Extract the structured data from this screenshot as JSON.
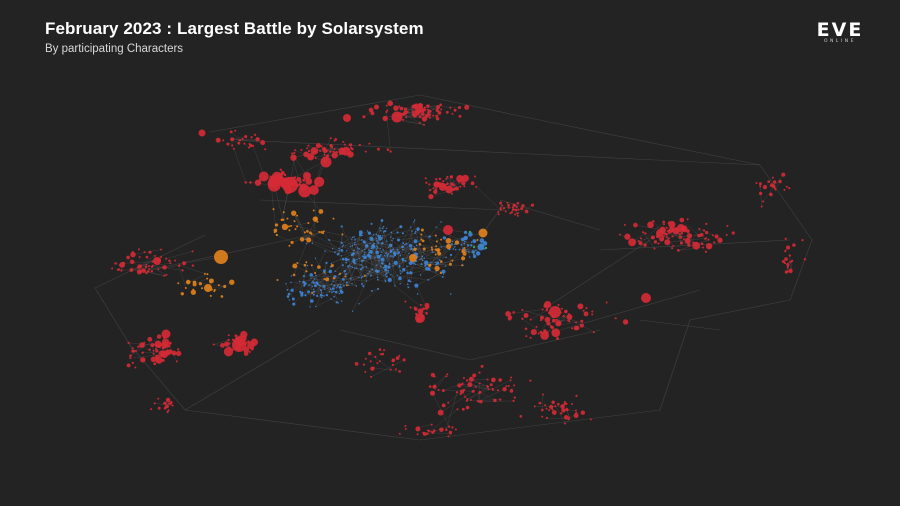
{
  "header": {
    "title": "February 2023 : Largest Battle by Solarsystem",
    "subtitle": "By participating Characters"
  },
  "logo": {
    "text": "EVE",
    "subtext": "ONLINE"
  },
  "colors": {
    "background": "#232323",
    "connection": "#5a5a5a",
    "red": "#d42a35",
    "orange": "#e0801c",
    "blue": "#3e85d6",
    "green": "#3aa356"
  }
}
